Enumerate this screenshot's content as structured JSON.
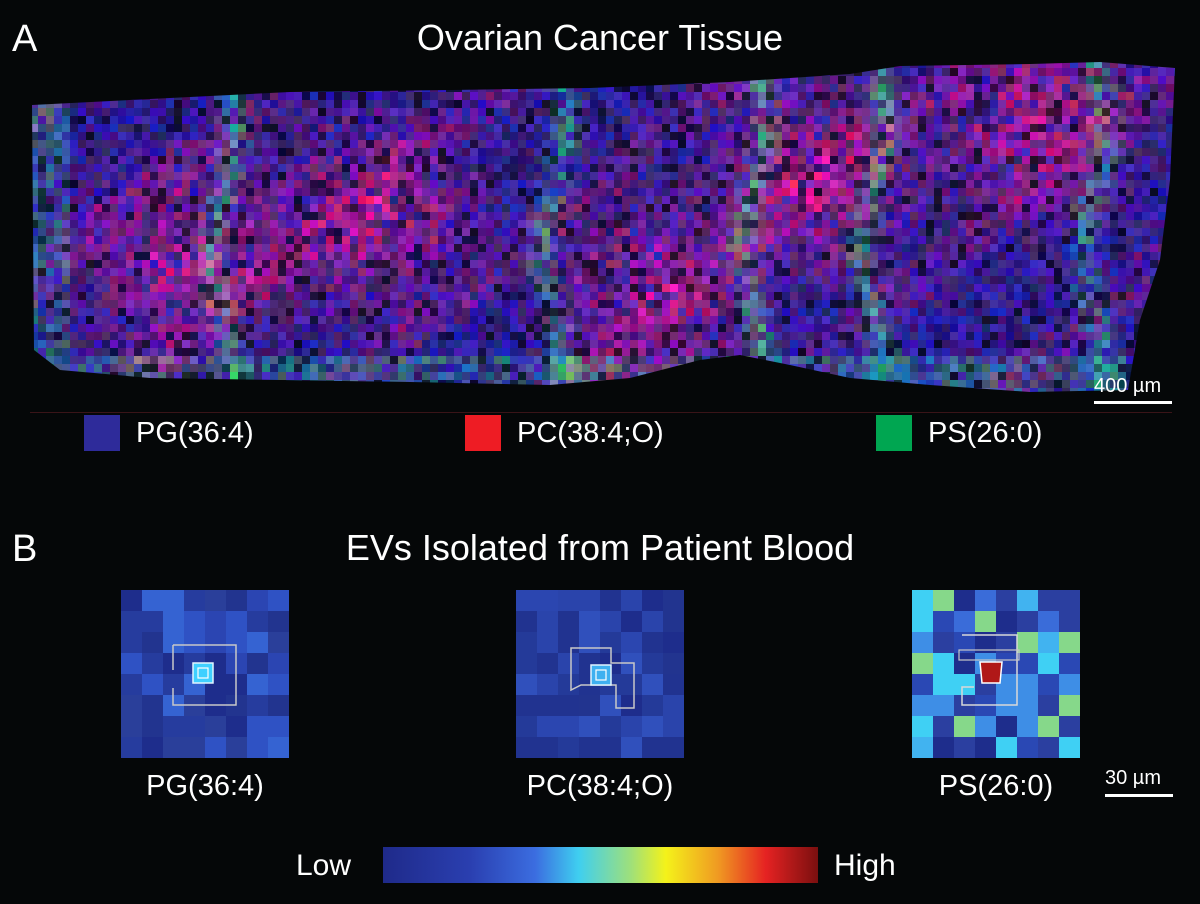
{
  "panel_a": {
    "letter": "A",
    "title": "Ovarian Cancer Tissue",
    "scale_label": "400 µm",
    "legend": [
      {
        "label": "PG(36:4)",
        "color": "#2e2b9a"
      },
      {
        "label": "PC(38:4;O)",
        "color": "#ee1c24"
      },
      {
        "label": "PS(26:0)",
        "color": "#00a651"
      }
    ]
  },
  "panel_b": {
    "letter": "B",
    "title": "EVs Isolated from Patient Blood",
    "scale_label": "30 µm",
    "maps": [
      {
        "label": "PG(36:4)"
      },
      {
        "label": "PC(38:4;O)"
      },
      {
        "label": "PS(26:0)"
      }
    ],
    "colorbar": {
      "low": "Low",
      "high": "High"
    }
  }
}
